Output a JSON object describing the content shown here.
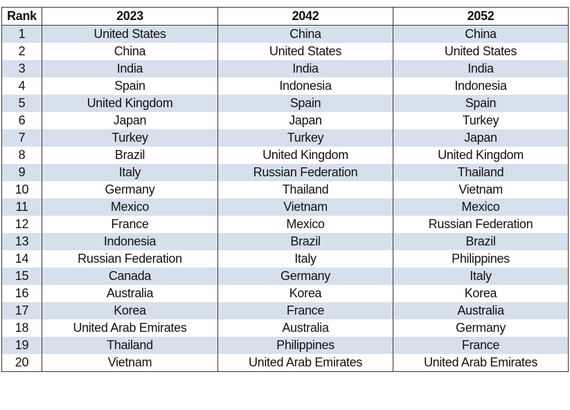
{
  "table": {
    "header": [
      "Rank",
      "2023",
      "2042",
      "2052"
    ],
    "rows": [
      [
        "1",
        "United States",
        "China",
        "China"
      ],
      [
        "2",
        "China",
        "United States",
        "United States"
      ],
      [
        "3",
        "India",
        "India",
        "India"
      ],
      [
        "4",
        "Spain",
        "Indonesia",
        "Indonesia"
      ],
      [
        "5",
        "United Kingdom",
        "Spain",
        "Spain"
      ],
      [
        "6",
        "Japan",
        "Japan",
        "Turkey"
      ],
      [
        "7",
        "Turkey",
        "Turkey",
        "Japan"
      ],
      [
        "8",
        "Brazil",
        "United Kingdom",
        "United Kingdom"
      ],
      [
        "9",
        "Italy",
        "Russian Federation",
        "Thailand"
      ],
      [
        "10",
        "Germany",
        "Thailand",
        "Vietnam"
      ],
      [
        "11",
        "Mexico",
        "Vietnam",
        "Mexico"
      ],
      [
        "12",
        "France",
        "Mexico",
        "Russian Federation"
      ],
      [
        "13",
        "Indonesia",
        "Brazil",
        "Brazil"
      ],
      [
        "14",
        "Russian Federation",
        "Italy",
        "Philippines"
      ],
      [
        "15",
        "Canada",
        "Germany",
        "Italy"
      ],
      [
        "16",
        "Australia",
        "Korea",
        "Korea"
      ],
      [
        "17",
        "Korea",
        "France",
        "Australia"
      ],
      [
        "18",
        "United Arab Emirates",
        "Australia",
        "Germany"
      ],
      [
        "19",
        "Thailand",
        "Philippines",
        "France"
      ],
      [
        "20",
        "Vietnam",
        "United Arab Emirates",
        "United Arab Emirates"
      ]
    ]
  }
}
